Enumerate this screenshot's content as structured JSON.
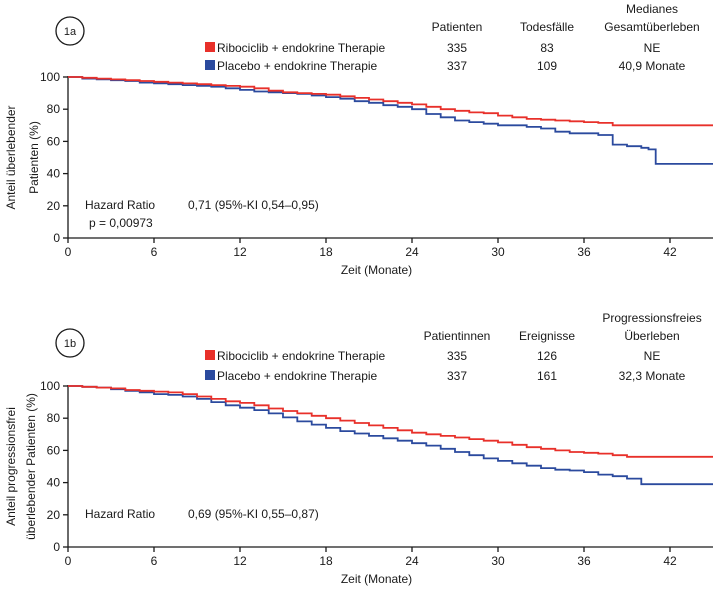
{
  "chart_data": [
    {
      "type": "line",
      "panel_label": "1a",
      "xlabel": "Zeit (Monate)",
      "ylabel": [
        "Anteil überlebender",
        "Patienten (%)"
      ],
      "xlim": [
        0,
        45
      ],
      "ylim": [
        0,
        100
      ],
      "xticks": [
        0,
        6,
        12,
        18,
        24,
        30,
        36,
        42
      ],
      "yticks": [
        0,
        20,
        40,
        60,
        80,
        100
      ],
      "grid": false,
      "legend_position": "top-center",
      "table_headers": {
        "col1": [
          "Patienten"
        ],
        "col2": [
          "Todesfälle"
        ],
        "col3": [
          "Medianes",
          "Gesamtüberleben"
        ]
      },
      "series": [
        {
          "name": "Ribociclib + endokrine Therapie",
          "color": "#e8302a",
          "col1": "335",
          "col2": "83",
          "col3": "NE",
          "x": [
            0,
            1,
            2,
            3,
            4,
            5,
            6,
            7,
            8,
            9,
            10,
            11,
            12,
            13,
            14,
            15,
            16,
            17,
            18,
            19,
            20,
            21,
            22,
            23,
            24,
            25,
            26,
            27,
            28,
            29,
            30,
            31,
            32,
            33,
            34,
            35,
            36,
            37,
            38,
            39,
            40,
            41,
            42,
            43,
            44,
            45
          ],
          "values": [
            100,
            99.5,
            99,
            98.5,
            98,
            97.5,
            97,
            96.5,
            96,
            95.5,
            95,
            94.5,
            94,
            93,
            91.5,
            90.5,
            90,
            89.5,
            89,
            88,
            87,
            86,
            85,
            84,
            83,
            81.5,
            80,
            79,
            78,
            77.5,
            76,
            75,
            74,
            73.5,
            73,
            72.5,
            72,
            71.5,
            70,
            70,
            70,
            70,
            70,
            70,
            70,
            70
          ]
        },
        {
          "name": "Placebo + endokrine Therapie",
          "color": "#2b4a9e",
          "col1": "337",
          "col2": "109",
          "col3": "40,9 Monate",
          "x": [
            0,
            1,
            2,
            3,
            4,
            5,
            6,
            7,
            8,
            9,
            10,
            11,
            12,
            13,
            14,
            15,
            16,
            17,
            18,
            19,
            20,
            21,
            22,
            23,
            24,
            25,
            26,
            27,
            28,
            29,
            30,
            31,
            32,
            33,
            34,
            35,
            36,
            37,
            38,
            39,
            40,
            40.5,
            41,
            42,
            43,
            44,
            45
          ],
          "values": [
            100,
            99,
            98.5,
            98,
            97.5,
            96.5,
            96,
            95.5,
            95,
            94.5,
            94,
            93,
            92,
            91,
            90.5,
            90,
            89.5,
            88.5,
            87.5,
            86.5,
            85,
            84,
            82.5,
            81.5,
            80,
            77,
            75,
            73,
            72,
            71,
            70,
            70,
            69,
            68,
            66,
            65,
            65,
            64,
            58,
            57,
            56,
            55,
            46,
            46,
            46,
            46,
            46
          ]
        }
      ],
      "annotations": {
        "left": [
          "Hazard Ratio",
          "p = 0,00973"
        ],
        "right": "0,71 (95%-KI 0,54–0,95)"
      }
    },
    {
      "type": "line",
      "panel_label": "1b",
      "xlabel": "Zeit (Monate)",
      "ylabel": [
        "Anteil progressionsfrei",
        "überlebender Patienten (%)"
      ],
      "xlim": [
        0,
        45
      ],
      "ylim": [
        0,
        100
      ],
      "xticks": [
        0,
        6,
        12,
        18,
        24,
        30,
        36,
        42
      ],
      "yticks": [
        0,
        20,
        40,
        60,
        80,
        100
      ],
      "grid": false,
      "legend_position": "top-center",
      "table_headers": {
        "col1": [
          "Patientinnen"
        ],
        "col2": [
          "Ereignisse"
        ],
        "col3": [
          "Progressionsfreies",
          "Überleben"
        ]
      },
      "series": [
        {
          "name": "Ribociclib + endokrine Therapie",
          "color": "#e8302a",
          "col1": "335",
          "col2": "126",
          "col3": "NE",
          "x": [
            0,
            1,
            2,
            3,
            4,
            5,
            6,
            7,
            8,
            9,
            10,
            11,
            12,
            13,
            14,
            15,
            16,
            17,
            18,
            19,
            20,
            21,
            22,
            23,
            24,
            25,
            26,
            27,
            28,
            29,
            30,
            31,
            32,
            33,
            34,
            35,
            36,
            37,
            38,
            39,
            40,
            41,
            42,
            43,
            44,
            45
          ],
          "values": [
            100,
            99.5,
            99,
            98.5,
            97.5,
            97,
            96.5,
            96,
            95,
            93.5,
            92,
            90.5,
            89.5,
            88,
            86,
            84.5,
            83,
            81.5,
            80,
            78.5,
            77,
            75.5,
            74,
            72.5,
            71,
            70,
            69,
            68,
            67,
            66,
            65,
            63.5,
            62,
            61,
            60,
            59,
            58.5,
            58,
            57,
            56,
            56,
            56,
            56,
            56,
            56,
            56
          ]
        },
        {
          "name": "Placebo + endokrine Therapie",
          "color": "#2b4a9e",
          "col1": "337",
          "col2": "161",
          "col3": "32,3 Monate",
          "x": [
            0,
            1,
            2,
            3,
            4,
            5,
            6,
            7,
            8,
            9,
            10,
            11,
            12,
            13,
            14,
            15,
            16,
            17,
            18,
            19,
            20,
            21,
            22,
            23,
            24,
            25,
            26,
            27,
            28,
            29,
            30,
            31,
            32,
            33,
            34,
            35,
            36,
            37,
            38,
            39,
            40,
            41,
            42,
            43,
            44,
            45
          ],
          "values": [
            100,
            99.5,
            99,
            98,
            97,
            96,
            95,
            94.5,
            93.5,
            92,
            90,
            88,
            86.5,
            85,
            83,
            80.5,
            78,
            76,
            74,
            72,
            70.5,
            69,
            67.5,
            66,
            64.5,
            63,
            61,
            59,
            57,
            55,
            53.5,
            52,
            50.5,
            49,
            48,
            47.5,
            46.5,
            45,
            44,
            42.5,
            39,
            39,
            39,
            39,
            39,
            39
          ]
        }
      ],
      "annotations": {
        "left": [
          "Hazard Ratio"
        ],
        "right": "0,69 (95%-KI 0,55–0,87)"
      }
    }
  ]
}
